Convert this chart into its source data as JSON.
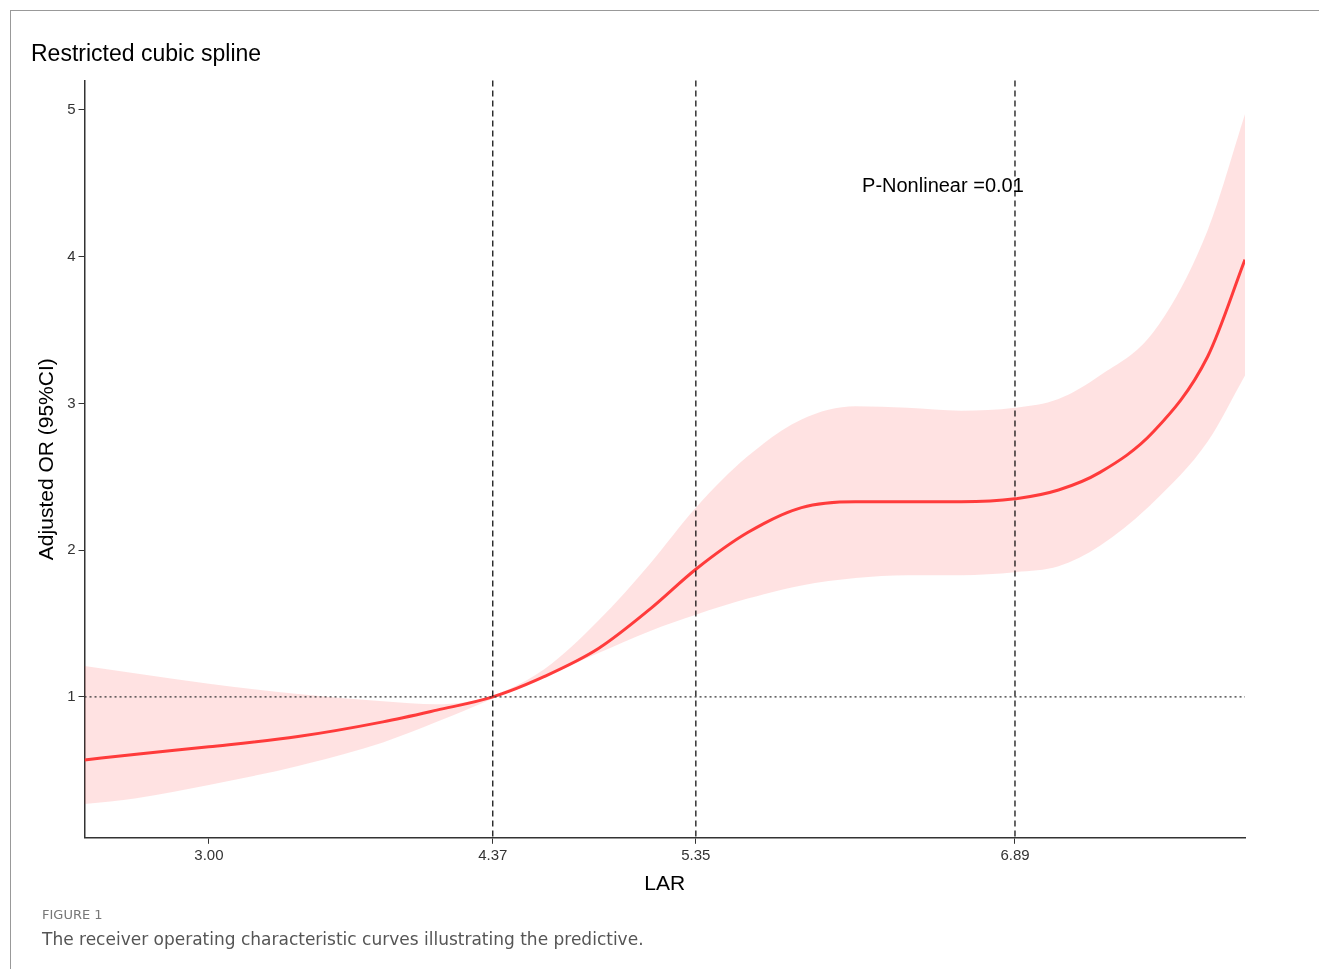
{
  "chart_data": {
    "type": "line",
    "title": "Restricted cubic spline",
    "xlabel": "LAR",
    "ylabel": "Adjusted OR (95%CI)",
    "x": [
      2.4,
      2.65,
      3.0,
      3.43,
      3.84,
      4.1,
      4.37,
      4.62,
      4.88,
      5.13,
      5.35,
      5.6,
      5.86,
      6.12,
      6.37,
      6.63,
      6.89,
      7.1,
      7.3,
      7.56,
      7.82,
      8.0
    ],
    "series": [
      {
        "color": "#ff3b3b",
        "values": [
          0.57,
          0.61,
          0.66,
          0.73,
          0.83,
          0.91,
          1.0,
          1.14,
          1.33,
          1.6,
          1.87,
          2.12,
          2.29,
          2.33,
          2.33,
          2.33,
          2.35,
          2.41,
          2.53,
          2.81,
          3.32,
          3.98
        ],
        "lower": [
          0.27,
          0.31,
          0.4,
          0.53,
          0.69,
          0.83,
          0.99,
          1.14,
          1.3,
          1.45,
          1.56,
          1.67,
          1.76,
          1.81,
          1.83,
          1.83,
          1.85,
          1.89,
          2.03,
          2.33,
          2.74,
          3.19
        ],
        "upper": [
          1.21,
          1.16,
          1.09,
          1.02,
          0.97,
          0.95,
          1.01,
          1.19,
          1.52,
          1.91,
          2.29,
          2.64,
          2.89,
          2.98,
          2.97,
          2.95,
          2.97,
          3.03,
          3.19,
          3.49,
          4.18,
          4.97
        ]
      }
    ],
    "xlim": [
      2.4,
      8.0
    ],
    "ylim": [
      0.04,
      5.2
    ],
    "xticks": [
      {
        "value": 3,
        "label": "3.00"
      },
      {
        "value": 4.37,
        "label": "4.37"
      },
      {
        "value": 5.35,
        "label": "5.35"
      },
      {
        "value": 6.89,
        "label": "6.89"
      }
    ],
    "yticks": [
      1,
      2,
      3,
      4,
      5
    ],
    "ref_lines": [
      {
        "axis": "x",
        "value": 4.37,
        "line_style": "dashed",
        "color": "#000000"
      },
      {
        "axis": "x",
        "value": 5.35,
        "line_style": "dashed",
        "color": "#000000"
      },
      {
        "axis": "x",
        "value": 6.89,
        "line_style": "dashed",
        "color": "#000000"
      },
      {
        "axis": "y",
        "value": 1,
        "line_style": "dotted",
        "color": "#333333"
      }
    ],
    "annotations": [
      "P-Nonlinear =0.01",
      "FIGURE 1",
      "The receiver operating characteristic curves illustrating the predictive."
    ],
    "grid": false,
    "legend": false,
    "marker": "none",
    "line_style": "solid"
  }
}
